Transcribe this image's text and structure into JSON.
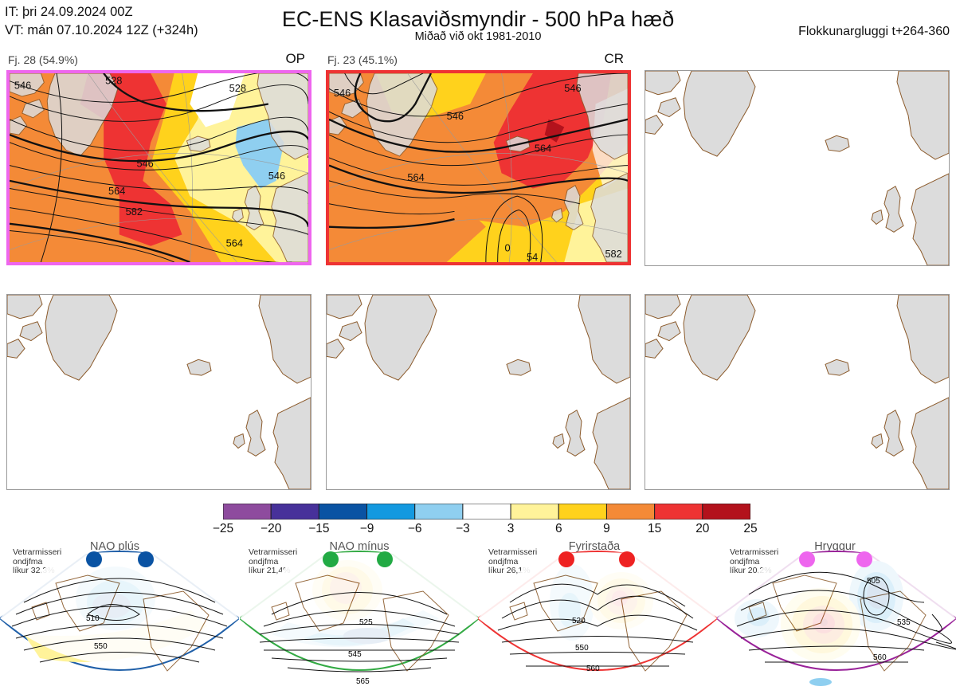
{
  "header": {
    "it_line": "IT: þri 24.09.2024 00Z",
    "vt_line": "VT: mán 07.10.2024 12Z  (+324h)",
    "title": "EC-ENS Klasaviðsmyndir - 500 hPa hæð",
    "subtitle": "Miðað við okt 1981-2010",
    "window": "Flokkunargluggi t+264-360"
  },
  "colors": {
    "land": "#dcdcdc",
    "coast": "#8b5a2b",
    "contour": "#111111",
    "frame_op": "#ee66ee",
    "frame_cr": "#ee3333",
    "nao_plus": "#1f5fa8",
    "nao_minus": "#33aa44",
    "blocking": "#ee3333",
    "ridge": "#992299"
  },
  "clusters": [
    {
      "label": "Fj. 28 (54.9%)",
      "code": "OP",
      "members": 28,
      "percent": 54.9,
      "frame_color": "#ee66ee",
      "contour_labels": [
        "546",
        "528",
        "528",
        "546",
        "564",
        "582",
        "564",
        "546"
      ]
    },
    {
      "label": "Fj. 23 (45.1%)",
      "code": "CR",
      "members": 23,
      "percent": 45.1,
      "frame_color": "#ee3333",
      "contour_labels": [
        "546",
        "546",
        "564",
        "546",
        "564",
        "0",
        "54",
        "582"
      ]
    }
  ],
  "legend": {
    "boundaries": [
      "-25",
      "-20",
      "-15",
      "-9",
      "-6",
      "-3",
      "3",
      "6",
      "9",
      "15",
      "20",
      "25"
    ],
    "colors": [
      "#8e4b9e",
      "#47319a",
      "#0a53a3",
      "#1399e0",
      "#8fcff0",
      "#ffffff",
      "#fff39a",
      "#ffd21c",
      "#f48a37",
      "#ee3333",
      "#b3121c"
    ]
  },
  "regimes": [
    {
      "meta": [
        "Vetrarmisseri",
        "ondjfma",
        "líkur 32,3%"
      ],
      "name": "NAO plús",
      "likelihood": 32.3,
      "marker_color": "#0a53a3",
      "frame_color": "#1f5fa8",
      "contour_labels": [
        "510",
        "550"
      ]
    },
    {
      "meta": [
        "Vetrarmisseri",
        "ondjfma",
        "líkur 21,4%"
      ],
      "name": "NAO mínus",
      "likelihood": 21.4,
      "marker_color": "#22aa44",
      "frame_color": "#33aa44",
      "contour_labels": [
        "525",
        "545",
        "565"
      ]
    },
    {
      "meta": [
        "Vetrarmisseri",
        "ondjfma",
        "líkur 26,1%"
      ],
      "name": "Fyrirstaða",
      "likelihood": 26.1,
      "marker_color": "#ee2222",
      "frame_color": "#ee3333",
      "contour_labels": [
        "520",
        "550",
        "560"
      ]
    },
    {
      "meta": [
        "Vetrarmisseri",
        "ondjfma",
        "líkur 20,2%"
      ],
      "name": "Hryggur",
      "likelihood": 20.2,
      "marker_color": "#ee66ee",
      "frame_color": "#992299",
      "contour_labels": [
        "505",
        "535",
        "560"
      ]
    }
  ]
}
